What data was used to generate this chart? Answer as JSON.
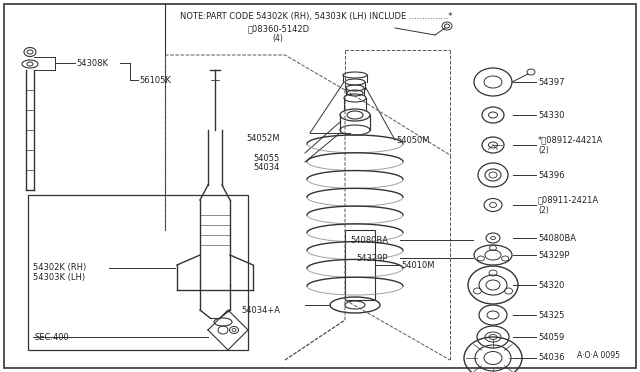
{
  "bg_color": "#ffffff",
  "border_color": "#333333",
  "line_color": "#333333",
  "text_color": "#222222",
  "title_text": "NOTE:PART CODE 54302K (RH), 54303K (LH) INCLUDE ...............*",
  "subtitle_text": "Ⓝ08360-5142D",
  "subtitle_sub": "(4)",
  "diagram_number": "A·O·A 0095",
  "fig_w": 6.4,
  "fig_h": 3.72
}
